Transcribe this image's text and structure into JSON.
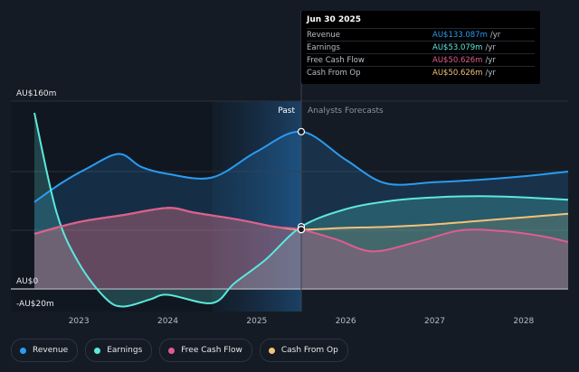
{
  "chart_data": {
    "type": "area",
    "currency": "AU$",
    "y_axis": {
      "ticks": [
        "AU$160m",
        "AU$0",
        "-AU$20m"
      ],
      "ylim": [
        -20,
        160
      ]
    },
    "x_axis": {
      "ticks": [
        "2023",
        "2024",
        "2025",
        "2026",
        "2027",
        "2028"
      ],
      "xlim": [
        2022.5,
        2028.5
      ]
    },
    "regions": {
      "past_label": "Past",
      "forecast_label": "Analysts Forecasts",
      "divider_x": 2025.5,
      "shade_from_x": 2024.5
    },
    "series": [
      {
        "key": "revenue",
        "name": "Revenue",
        "color": "#2a9cf2",
        "points": [
          [
            2022.5,
            74
          ],
          [
            2022.8,
            90
          ],
          [
            2023.1,
            103
          ],
          [
            2023.45,
            115
          ],
          [
            2023.7,
            104
          ],
          [
            2024.0,
            98
          ],
          [
            2024.5,
            95
          ],
          [
            2025.0,
            117
          ],
          [
            2025.5,
            134
          ],
          [
            2026.0,
            110
          ],
          [
            2026.45,
            90
          ],
          [
            2027.0,
            91
          ],
          [
            2027.5,
            93
          ],
          [
            2028.0,
            96
          ],
          [
            2028.5,
            100
          ]
        ]
      },
      {
        "key": "earnings",
        "name": "Earnings",
        "color": "#5ce8dd",
        "points": [
          [
            2022.5,
            150
          ],
          [
            2022.75,
            65
          ],
          [
            2023.0,
            22
          ],
          [
            2023.3,
            -8
          ],
          [
            2023.5,
            -15
          ],
          [
            2023.8,
            -9
          ],
          [
            2024.0,
            -5
          ],
          [
            2024.5,
            -12
          ],
          [
            2024.75,
            5
          ],
          [
            2025.1,
            25
          ],
          [
            2025.5,
            53
          ],
          [
            2026.0,
            68
          ],
          [
            2026.5,
            75
          ],
          [
            2027.0,
            78
          ],
          [
            2027.5,
            79
          ],
          [
            2028.0,
            78
          ],
          [
            2028.5,
            76
          ]
        ]
      },
      {
        "key": "fcf",
        "name": "Free Cash Flow",
        "color": "#e05c90",
        "points": [
          [
            2022.5,
            47
          ],
          [
            2023.0,
            57
          ],
          [
            2023.5,
            63
          ],
          [
            2024.0,
            69
          ],
          [
            2024.3,
            65
          ],
          [
            2024.8,
            59
          ],
          [
            2025.2,
            53
          ],
          [
            2025.5,
            50.6
          ],
          [
            2025.9,
            42
          ],
          [
            2026.3,
            32
          ],
          [
            2026.8,
            40
          ],
          [
            2027.3,
            50
          ],
          [
            2027.8,
            49
          ],
          [
            2028.2,
            45
          ],
          [
            2028.5,
            40
          ]
        ]
      },
      {
        "key": "cfo",
        "name": "Cash From Op",
        "color": "#f3c27a",
        "points": [
          [
            2022.5,
            47
          ],
          [
            2023.0,
            57
          ],
          [
            2023.5,
            63
          ],
          [
            2024.0,
            69
          ],
          [
            2024.3,
            65
          ],
          [
            2024.8,
            59
          ],
          [
            2025.2,
            53
          ],
          [
            2025.5,
            50.6
          ],
          [
            2026.0,
            52
          ],
          [
            2026.5,
            53
          ],
          [
            2027.0,
            55
          ],
          [
            2027.5,
            58
          ],
          [
            2028.0,
            61
          ],
          [
            2028.5,
            64
          ]
        ]
      }
    ]
  },
  "tooltip": {
    "date": "Jun 30 2025",
    "rows": [
      {
        "label": "Revenue",
        "value": "AU$133.087m",
        "unit": "/yr",
        "color": "#2a9cf2"
      },
      {
        "label": "Earnings",
        "value": "AU$53.079m",
        "unit": "/yr",
        "color": "#5ce8dd"
      },
      {
        "label": "Free Cash Flow",
        "value": "AU$50.626m",
        "unit": "/yr",
        "color": "#e05c90"
      },
      {
        "label": "Cash From Op",
        "value": "AU$50.626m",
        "unit": "/yr",
        "color": "#f3c27a"
      }
    ]
  },
  "legend": [
    {
      "label": "Revenue",
      "color": "#2a9cf2"
    },
    {
      "label": "Earnings",
      "color": "#5ce8dd"
    },
    {
      "label": "Free Cash Flow",
      "color": "#e05c90"
    },
    {
      "label": "Cash From Op",
      "color": "#f3c27a"
    }
  ]
}
